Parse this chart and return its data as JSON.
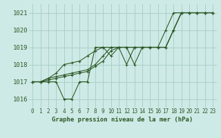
{
  "xlabel_label": "Graphe pression niveau de la mer (hPa)",
  "background_color": "#ceeae6",
  "grid_color": "#aacfc9",
  "line_color": "#2d5a27",
  "text_color": "#2d5a27",
  "xlim": [
    -0.5,
    23.5
  ],
  "ylim": [
    1015.5,
    1021.5
  ],
  "yticks": [
    1016,
    1017,
    1018,
    1019,
    1020,
    1021
  ],
  "xticks": [
    0,
    1,
    2,
    3,
    4,
    5,
    6,
    7,
    8,
    9,
    10,
    11,
    12,
    13,
    14,
    15,
    16,
    17,
    18,
    19,
    20,
    21,
    22,
    23
  ],
  "series": [
    {
      "x": [
        0,
        1,
        2,
        3,
        4,
        5,
        6,
        7,
        8,
        9,
        10,
        11,
        12,
        13,
        14,
        15,
        16,
        17,
        18,
        19,
        20,
        21,
        22,
        23
      ],
      "y": [
        1017.0,
        1017.0,
        1017.0,
        1017.0,
        1016.0,
        1016.0,
        1017.0,
        1017.0,
        1019.0,
        1019.0,
        1018.5,
        1019.0,
        1019.0,
        1018.0,
        1019.0,
        1019.0,
        1019.0,
        1019.0,
        1020.0,
        1021.0,
        1021.0,
        1021.0,
        1021.0,
        1021.0
      ]
    },
    {
      "x": [
        0,
        1,
        2,
        3,
        4,
        5,
        6,
        7,
        8,
        9,
        10,
        11,
        12,
        13,
        14,
        15,
        16,
        17,
        18,
        19,
        20,
        21,
        22,
        23
      ],
      "y": [
        1017.0,
        1017.0,
        1017.2,
        1017.3,
        1017.4,
        1017.5,
        1017.6,
        1017.7,
        1018.0,
        1018.5,
        1019.0,
        1019.0,
        1019.0,
        1019.0,
        1019.0,
        1019.0,
        1019.0,
        1019.0,
        1020.0,
        1021.0,
        1021.0,
        1021.0,
        1021.0,
        1021.0
      ]
    },
    {
      "x": [
        0,
        1,
        2,
        3,
        4,
        5,
        6,
        7,
        8,
        9,
        10,
        11,
        12,
        13,
        14,
        15,
        16,
        17,
        18,
        19,
        20,
        21,
        22,
        23
      ],
      "y": [
        1017.0,
        1017.0,
        1017.1,
        1017.2,
        1017.3,
        1017.4,
        1017.5,
        1017.6,
        1017.9,
        1018.2,
        1018.8,
        1019.0,
        1019.0,
        1019.0,
        1019.0,
        1019.0,
        1019.0,
        1019.0,
        1020.0,
        1021.0,
        1021.0,
        1021.0,
        1021.0,
        1021.0
      ]
    },
    {
      "x": [
        0,
        1,
        2,
        3,
        4,
        5,
        6,
        7,
        8,
        9,
        10,
        11,
        12,
        13,
        14,
        15,
        16,
        17,
        18,
        19,
        20,
        21,
        22,
        23
      ],
      "y": [
        1017.0,
        1017.0,
        1017.2,
        1017.5,
        1018.0,
        1018.1,
        1018.2,
        1018.5,
        1018.8,
        1019.0,
        1019.0,
        1019.0,
        1018.0,
        1019.0,
        1019.0,
        1019.0,
        1019.0,
        1020.0,
        1021.0,
        1021.0,
        1021.0,
        1021.0,
        1021.0,
        1021.0
      ]
    }
  ]
}
